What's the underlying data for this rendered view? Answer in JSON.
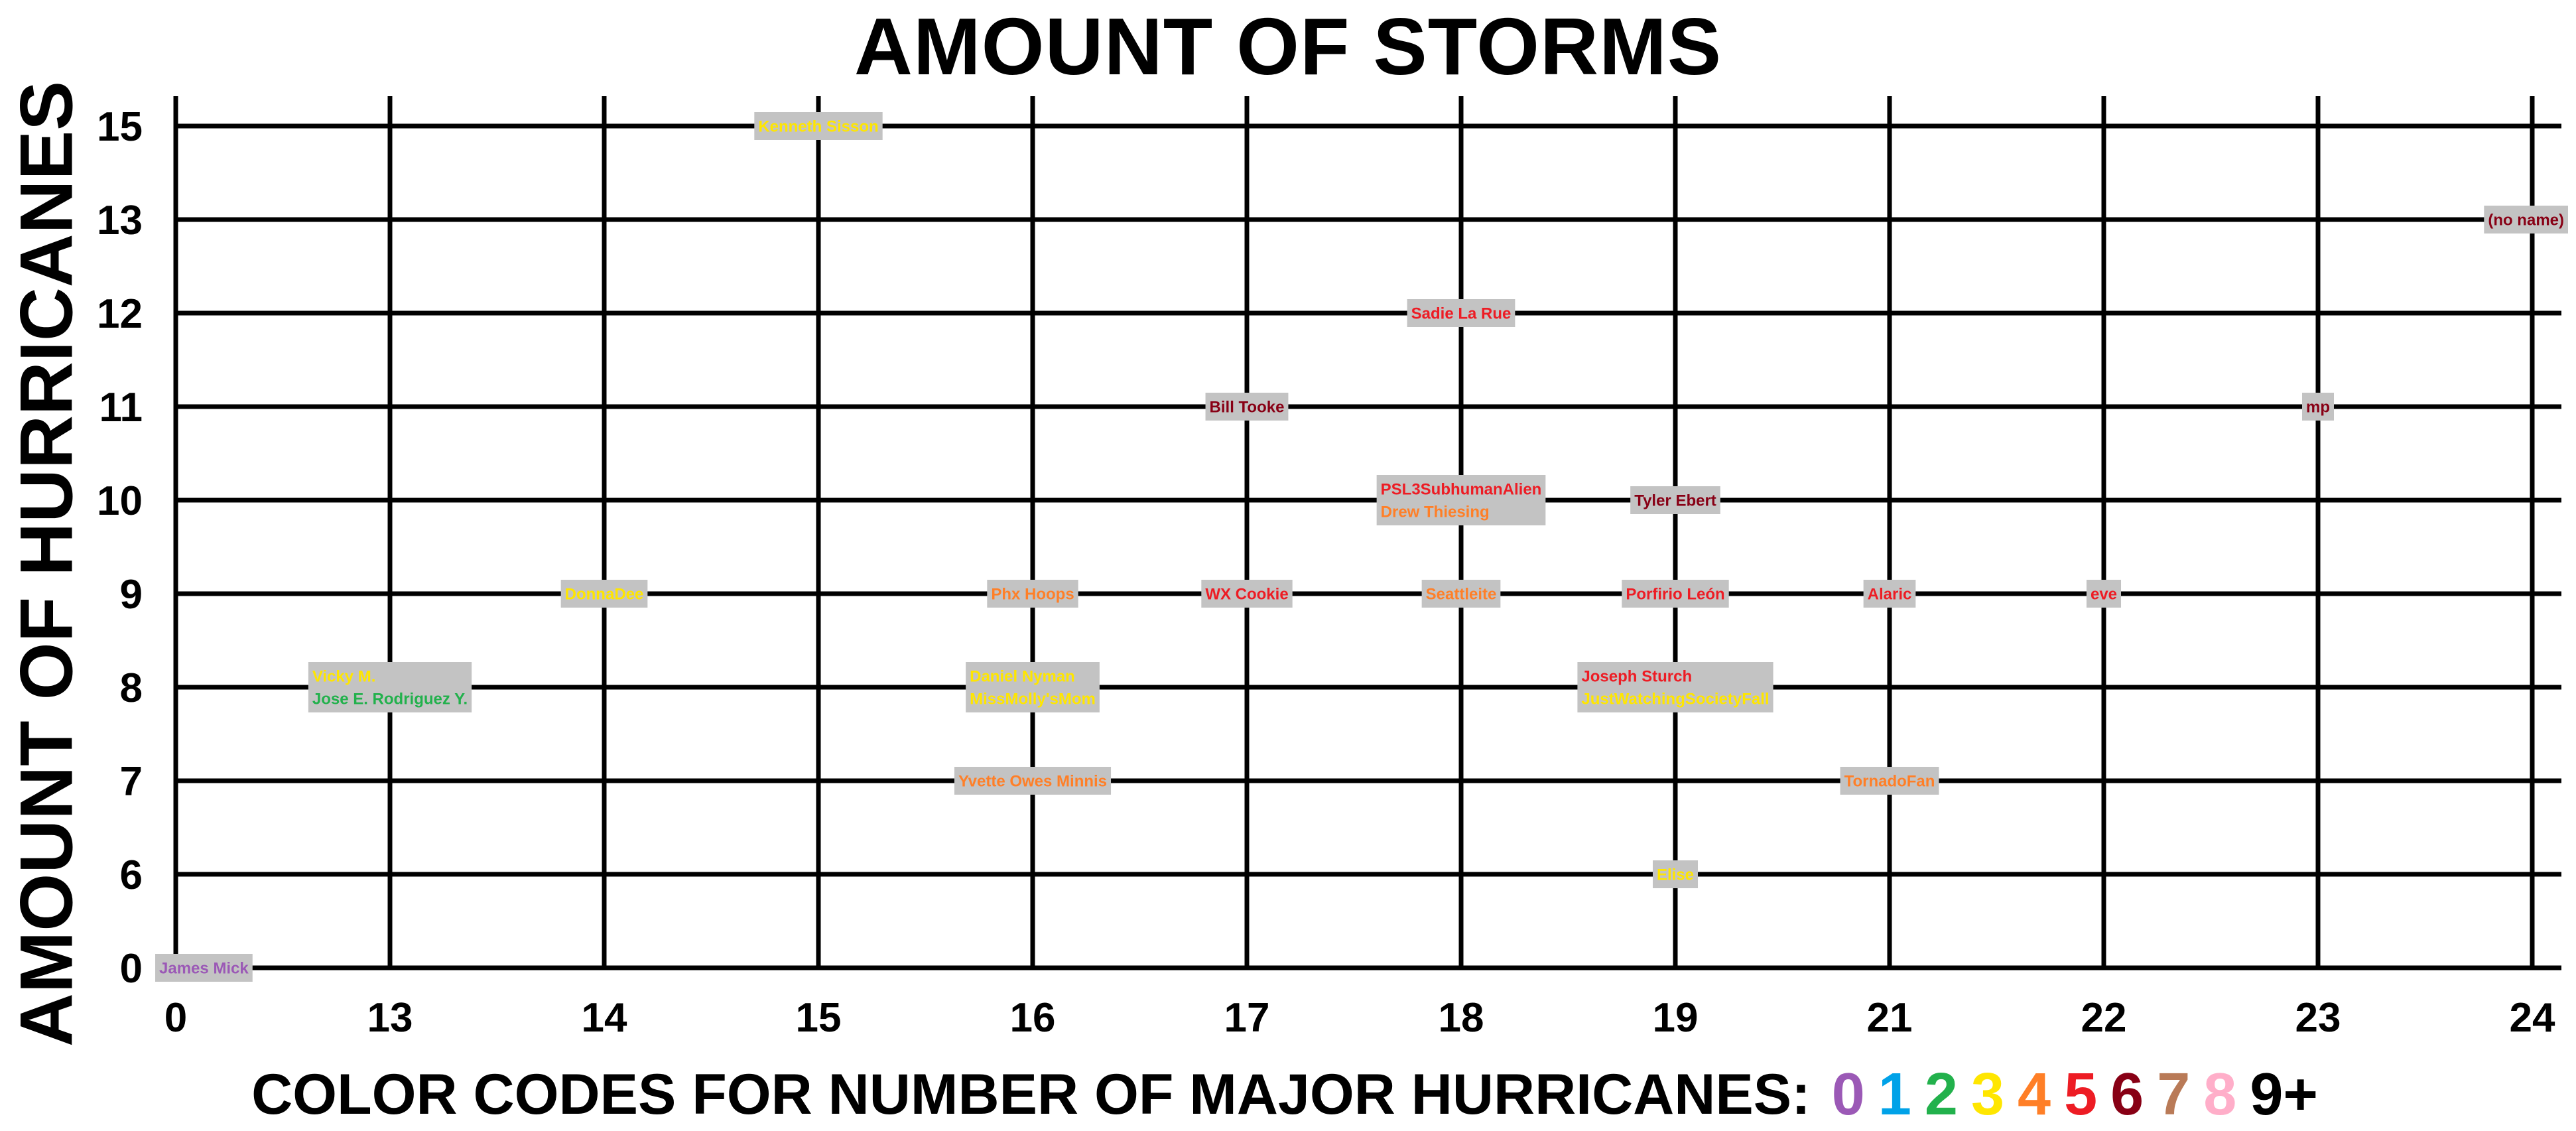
{
  "chart_data": {
    "type": "scatter",
    "title": "AMOUNT OF STORMS",
    "ylabel": "AMOUNT OF HURRICANES",
    "legend_title": "COLOR CODES FOR NUMBER OF MAJOR HURRICANES:",
    "legend_codes": [
      {
        "label": "0",
        "color": "#9b59b6"
      },
      {
        "label": "1",
        "color": "#00a2e8"
      },
      {
        "label": "2",
        "color": "#22b14c"
      },
      {
        "label": "3",
        "color": "#ffe600"
      },
      {
        "label": "4",
        "color": "#ff7f27"
      },
      {
        "label": "5",
        "color": "#ed1c24"
      },
      {
        "label": "6",
        "color": "#880015"
      },
      {
        "label": "7",
        "color": "#b97a57"
      },
      {
        "label": "8",
        "color": "#ffaec9"
      },
      {
        "label": "9+",
        "color": "#000000"
      }
    ],
    "x_ticks": [
      "0",
      "13",
      "14",
      "15",
      "16",
      "17",
      "18",
      "19",
      "21",
      "22",
      "23",
      "24"
    ],
    "y_ticks": [
      "0",
      "6",
      "7",
      "8",
      "9",
      "10",
      "11",
      "12",
      "13",
      "15"
    ],
    "grid": true,
    "label_box_color": "#c3c3c3",
    "points": [
      {
        "x": "15",
        "y": "15",
        "labels": [
          {
            "text": "Kenneth Sisson",
            "major": "3"
          }
        ]
      },
      {
        "x": "24",
        "y": "13",
        "labels": [
          {
            "text": "(no name)",
            "major": "6"
          }
        ]
      },
      {
        "x": "18",
        "y": "12",
        "labels": [
          {
            "text": "Sadie La Rue",
            "major": "5"
          }
        ]
      },
      {
        "x": "17",
        "y": "11",
        "labels": [
          {
            "text": "Bill Tooke",
            "major": "6"
          }
        ]
      },
      {
        "x": "23",
        "y": "11",
        "labels": [
          {
            "text": "mp",
            "major": "6"
          }
        ]
      },
      {
        "x": "18",
        "y": "10",
        "labels": [
          {
            "text": "PSL3SubhumanAlien",
            "major": "5"
          },
          {
            "text": "Drew Thiesing",
            "major": "4"
          }
        ]
      },
      {
        "x": "19",
        "y": "10",
        "labels": [
          {
            "text": "Tyler Ebert",
            "major": "6"
          }
        ]
      },
      {
        "x": "14",
        "y": "9",
        "labels": [
          {
            "text": "DonnaDee",
            "major": "3"
          }
        ]
      },
      {
        "x": "16",
        "y": "9",
        "labels": [
          {
            "text": "Phx Hoops",
            "major": "4"
          }
        ]
      },
      {
        "x": "17",
        "y": "9",
        "labels": [
          {
            "text": "WX Cookie",
            "major": "5"
          }
        ]
      },
      {
        "x": "18",
        "y": "9",
        "labels": [
          {
            "text": "Seattleite",
            "major": "4"
          }
        ]
      },
      {
        "x": "19",
        "y": "9",
        "labels": [
          {
            "text": "Porfirio León",
            "major": "5"
          }
        ]
      },
      {
        "x": "21",
        "y": "9",
        "labels": [
          {
            "text": "Alaric",
            "major": "5"
          }
        ]
      },
      {
        "x": "22",
        "y": "9",
        "labels": [
          {
            "text": "eve",
            "major": "5"
          }
        ]
      },
      {
        "x": "13",
        "y": "8",
        "labels": [
          {
            "text": "Vicky M.",
            "major": "3"
          },
          {
            "text": "Jose E. Rodriguez Y.",
            "major": "2"
          }
        ]
      },
      {
        "x": "16",
        "y": "8",
        "labels": [
          {
            "text": "Daniel Nyman",
            "major": "3"
          },
          {
            "text": "MissMolly'sMom",
            "major": "3"
          }
        ]
      },
      {
        "x": "19",
        "y": "8",
        "labels": [
          {
            "text": "Joseph Sturch",
            "major": "5"
          },
          {
            "text": "JustWatchingSocietyFall",
            "major": "3"
          }
        ]
      },
      {
        "x": "16",
        "y": "7",
        "labels": [
          {
            "text": "Yvette Owes Minnis",
            "major": "4"
          }
        ]
      },
      {
        "x": "21",
        "y": "7",
        "labels": [
          {
            "text": "TornadoFan",
            "major": "4"
          }
        ]
      },
      {
        "x": "19",
        "y": "6",
        "labels": [
          {
            "text": "Elise",
            "major": "3"
          }
        ]
      },
      {
        "x": "0",
        "y": "0",
        "labels": [
          {
            "text": "James Mick",
            "major": "0"
          }
        ]
      }
    ]
  }
}
